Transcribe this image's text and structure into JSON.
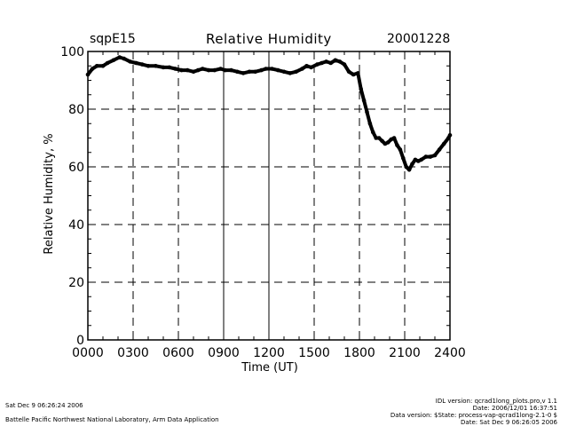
{
  "header": {
    "site": "sqpE15",
    "title": "Relative Humidity",
    "date": "20001228"
  },
  "footer": {
    "left": [
      "Sat Dec  9 06:26:24 2006",
      "Battelle Pacific Northwest National Laboratory, Arm Data Application"
    ],
    "right": [
      "IDL version: qcrad1long_plots.pro,v 1.1",
      "Date: 2006/12/01 16:37:51",
      "Data version: $State: process-vap-qcrad1long-2.1-0 $",
      "Date: Sat Dec  9 06:26:05 2006"
    ]
  },
  "colors": {
    "axis": "#000000",
    "series": "#000000",
    "background": "#ffffff"
  },
  "chart_data": {
    "type": "line",
    "title": "Relative Humidity",
    "xlabel": "Time (UT)",
    "ylabel": "Relative Humidity, %",
    "xlim": [
      0,
      24
    ],
    "ylim": [
      0,
      100
    ],
    "xticks": [
      0,
      3,
      6,
      9,
      12,
      15,
      18,
      21,
      24
    ],
    "xtick_labels": [
      "0000",
      "0300",
      "0600",
      "0900",
      "1200",
      "1500",
      "1800",
      "2100",
      "2400"
    ],
    "yticks": [
      0,
      20,
      40,
      60,
      80,
      100
    ],
    "ytick_labels": [
      "0",
      "20",
      "40",
      "60",
      "80",
      "100"
    ],
    "grid": true,
    "series": [
      {
        "name": "Relative Humidity",
        "x": [
          0,
          0.3,
          0.6,
          1.0,
          1.3,
          1.7,
          2.1,
          2.4,
          2.8,
          3.2,
          3.6,
          4.0,
          4.5,
          5.0,
          5.4,
          5.8,
          6.2,
          6.6,
          7.0,
          7.3,
          7.6,
          8.0,
          8.4,
          8.8,
          9.1,
          9.5,
          9.9,
          10.3,
          10.7,
          11.1,
          11.5,
          11.8,
          12.2,
          12.6,
          13.0,
          13.4,
          13.8,
          14.2,
          14.5,
          14.8,
          15.2,
          15.5,
          15.8,
          16.1,
          16.4,
          16.7,
          17.0,
          17.3,
          17.6,
          17.9,
          18.1,
          18.3,
          18.5,
          18.7,
          18.9,
          19.1,
          19.3,
          19.5,
          19.7,
          19.9,
          20.1,
          20.3,
          20.5,
          20.7,
          20.9,
          21.1,
          21.3,
          21.5,
          21.7,
          21.9,
          22.1,
          22.4,
          22.7,
          23.0,
          23.3,
          23.6,
          23.9,
          24.0
        ],
        "y": [
          92,
          94,
          95,
          95,
          96,
          97,
          98,
          97.5,
          96.5,
          96,
          95.5,
          95,
          95,
          94.5,
          94.5,
          94,
          93.5,
          93.5,
          93,
          93.5,
          94,
          93.5,
          93.5,
          94,
          93.5,
          93.5,
          93,
          92.5,
          93,
          93,
          93.5,
          94,
          94,
          93.5,
          93,
          92.5,
          93,
          94,
          95,
          94.5,
          95.5,
          96,
          96.5,
          96,
          97,
          96.5,
          95.5,
          93,
          92,
          92.5,
          87,
          83,
          79,
          75,
          72,
          70,
          70,
          69,
          68,
          68.5,
          69.5,
          70,
          67.5,
          66,
          63,
          60,
          59,
          61,
          62.5,
          62,
          62.5,
          63.5,
          63.5,
          64,
          66,
          68,
          70,
          71
        ]
      }
    ]
  }
}
